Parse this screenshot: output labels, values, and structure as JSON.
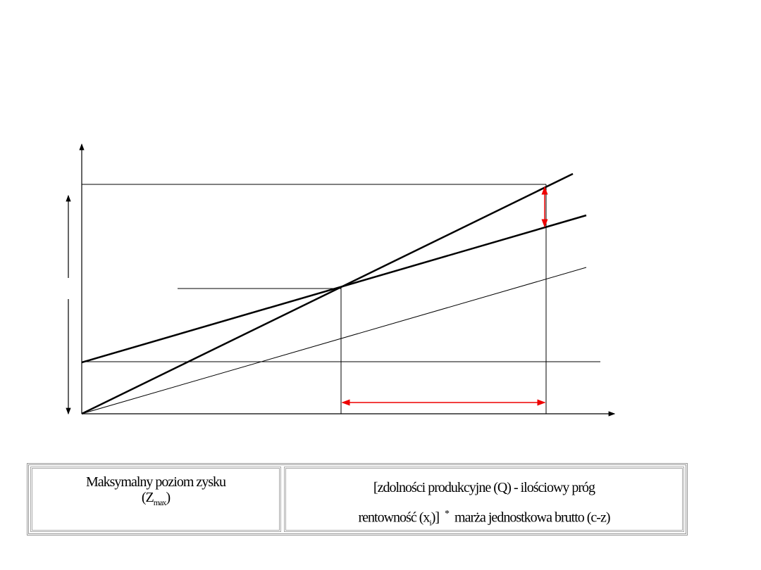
{
  "table": {
    "left": {
      "line1": "Maksymalny poziom zysku",
      "open": "(Z",
      "sub": "max",
      "close": ")"
    },
    "right": {
      "line1": "[zdolności produkcyjne (Q) - ilościowy próg",
      "line2a": "rentowność (x",
      "sub": "i",
      "line2b": ")]",
      "op": "*",
      "line2c": "marża jednostkowa brutto (c-z)"
    }
  }
}
